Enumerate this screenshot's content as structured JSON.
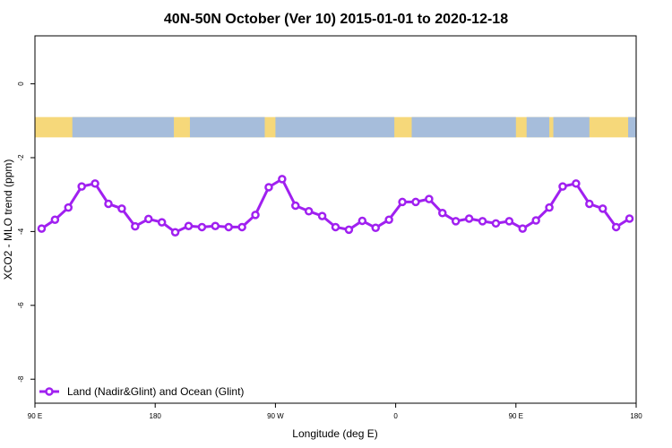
{
  "chart_data": {
    "type": "line",
    "title": "40N-50N October (Ver 10)   2015-01-01 to 2020-12-18",
    "xlabel": "Longitude (deg E)",
    "ylabel": "XCO2 - MLO trend (ppm)",
    "xlim": [
      90,
      540
    ],
    "ylim": [
      -8.65,
      1.3
    ],
    "x_ticks": [
      {
        "value": 90,
        "label": "90 E"
      },
      {
        "value": 180,
        "label": "180"
      },
      {
        "value": 270,
        "label": "90 W"
      },
      {
        "value": 360,
        "label": "0"
      },
      {
        "value": 450,
        "label": "90 E"
      },
      {
        "value": 540,
        "label": "180"
      }
    ],
    "y_ticks": [
      {
        "value": 0,
        "label": "0"
      },
      {
        "value": -2,
        "label": "-2"
      },
      {
        "value": -4,
        "label": "-4"
      },
      {
        "value": -6,
        "label": "-6"
      },
      {
        "value": -8,
        "label": "-8"
      }
    ],
    "grid": false,
    "legend_position": "bottom-left",
    "series": [
      {
        "name": "Land (Nadir&Glint) and Ocean (Glint)",
        "color": "#a020f0",
        "x": [
          95,
          105,
          115,
          125,
          135,
          145,
          155,
          165,
          175,
          185,
          195,
          205,
          215,
          225,
          235,
          245,
          255,
          265,
          275,
          285,
          295,
          305,
          315,
          325,
          335,
          345,
          355,
          365,
          375,
          385,
          395,
          405,
          415,
          425,
          435,
          445,
          455,
          465,
          475,
          485,
          495,
          505,
          515,
          525,
          535
        ],
        "values": [
          -3.92,
          -3.68,
          -3.35,
          -2.78,
          -2.7,
          -3.25,
          -3.38,
          -3.86,
          -3.66,
          -3.75,
          -4.02,
          -3.85,
          -3.88,
          -3.85,
          -3.88,
          -3.88,
          -3.55,
          -2.8,
          -2.58,
          -3.3,
          -3.45,
          -3.58,
          -3.88,
          -3.95,
          -3.71,
          -3.9,
          -3.68,
          -3.2,
          -3.2,
          -3.12,
          -3.5,
          -3.72,
          -3.65,
          -3.72,
          -3.78,
          -3.72,
          -3.92,
          -3.7,
          -3.35,
          -2.78,
          -2.7,
          -3.25,
          -3.38,
          -3.88,
          -3.65
        ]
      }
    ],
    "map_strip": {
      "y_range": [
        -0.9,
        -1.45
      ],
      "land_color": "#f6d87a",
      "ocean_color": "#a6bddb"
    }
  }
}
